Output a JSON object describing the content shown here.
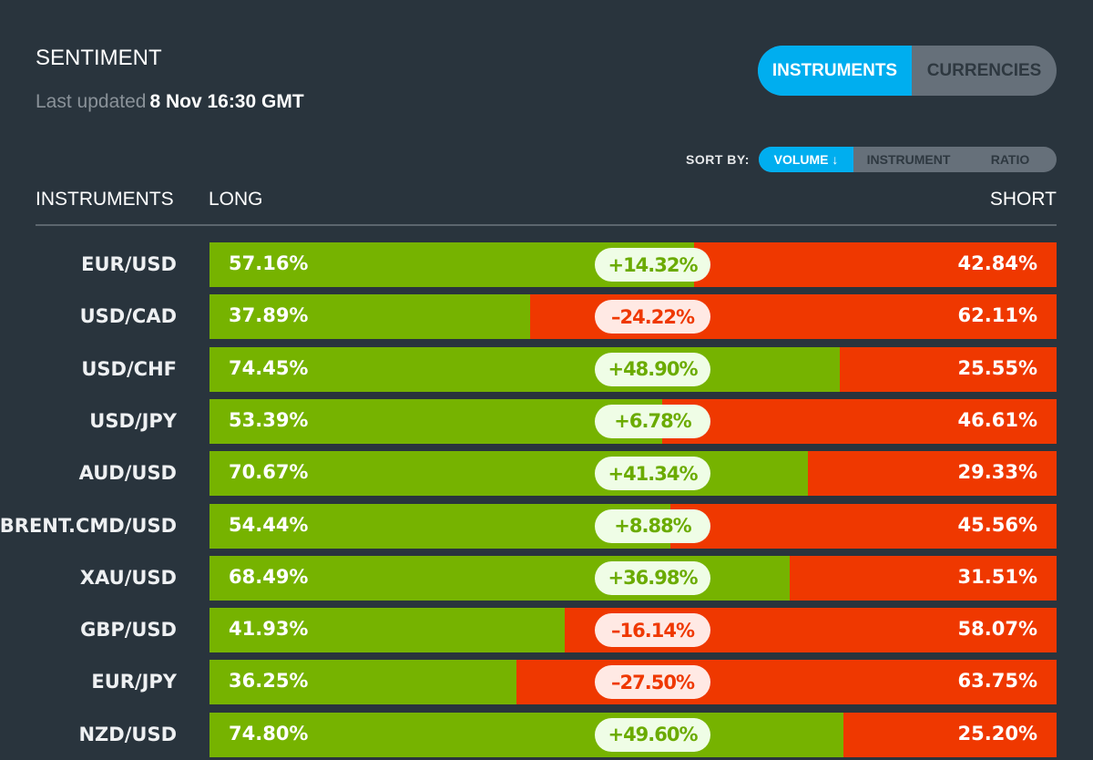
{
  "header": {
    "title": "SENTIMENT",
    "updated_label": "Last updated",
    "updated_value": "8 Nov 16:30 GMT"
  },
  "view_toggle": {
    "options": [
      "INSTRUMENTS",
      "CURRENCIES"
    ],
    "selected": "INSTRUMENTS"
  },
  "sort": {
    "label": "SORT BY:",
    "options": [
      "VOLUME ↓",
      "INSTRUMENT",
      "RATIO"
    ],
    "selected": "VOLUME ↓"
  },
  "columns": {
    "instruments": "INSTRUMENTS",
    "long": "LONG",
    "short": "SHORT"
  },
  "colors": {
    "background": "#29343d",
    "long": "#76b300",
    "short": "#ef3800",
    "accent": "#00aeef"
  },
  "rows": [
    {
      "name": "EUR/USD",
      "long": "57.16%",
      "short": "42.84%",
      "diff": "+14.32%",
      "long_pct": 57.16
    },
    {
      "name": "USD/CAD",
      "long": "37.89%",
      "short": "62.11%",
      "diff": "–24.22%",
      "long_pct": 37.89
    },
    {
      "name": "USD/CHF",
      "long": "74.45%",
      "short": "25.55%",
      "diff": "+48.90%",
      "long_pct": 74.45
    },
    {
      "name": "USD/JPY",
      "long": "53.39%",
      "short": "46.61%",
      "diff": "+6.78%",
      "long_pct": 53.39
    },
    {
      "name": "AUD/USD",
      "long": "70.67%",
      "short": "29.33%",
      "diff": "+41.34%",
      "long_pct": 70.67
    },
    {
      "name": "BRENT.CMD/USD",
      "long": "54.44%",
      "short": "45.56%",
      "diff": "+8.88%",
      "long_pct": 54.44
    },
    {
      "name": "XAU/USD",
      "long": "68.49%",
      "short": "31.51%",
      "diff": "+36.98%",
      "long_pct": 68.49
    },
    {
      "name": "GBP/USD",
      "long": "41.93%",
      "short": "58.07%",
      "diff": "–16.14%",
      "long_pct": 41.93
    },
    {
      "name": "EUR/JPY",
      "long": "36.25%",
      "short": "63.75%",
      "diff": "–27.50%",
      "long_pct": 36.25
    },
    {
      "name": "NZD/USD",
      "long": "74.80%",
      "short": "25.20%",
      "diff": "+49.60%",
      "long_pct": 74.8
    }
  ]
}
